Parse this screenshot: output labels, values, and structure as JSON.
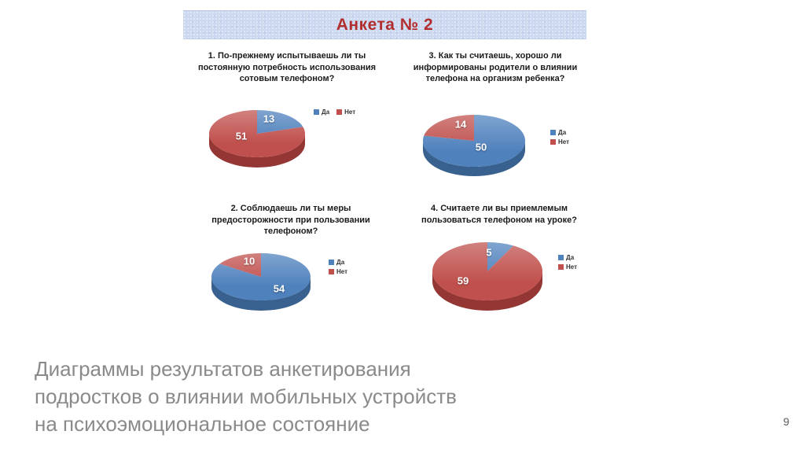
{
  "slide": {
    "title": "Анкета № 2",
    "caption": "Диаграммы результатов анкетирования\nподростков о влиянии мобильных устройств\nна психоэмоциональное состояние",
    "page_number": "9"
  },
  "colors": {
    "yes": "#4f81bd",
    "yes_dark": "#38618f",
    "no": "#c0504d",
    "no_dark": "#943634",
    "title": "#b22e2e",
    "header_band": "#ccd9f0",
    "caption_text": "#8a8a8a"
  },
  "chart_data": [
    {
      "type": "pie",
      "question": "1. По-прежнему испытываешь ли ты постоянную потребность использования сотовым телефоном?",
      "categories": [
        "Да",
        "Нет"
      ],
      "values": [
        13,
        51
      ],
      "data_labels": [
        "13",
        "51"
      ],
      "legend_position": "right",
      "legend_orientation": "horizontal",
      "start_angle_deg": -90,
      "direction": "clockwise"
    },
    {
      "type": "pie",
      "question": "2. Соблюдаешь ли ты меры предосторожности при пользовании телефоном?",
      "categories": [
        "Да",
        "Нет"
      ],
      "values": [
        54,
        10
      ],
      "data_labels": [
        "54",
        "10"
      ],
      "legend_position": "right",
      "legend_orientation": "vertical",
      "start_angle_deg": -90,
      "direction": "clockwise"
    },
    {
      "type": "pie",
      "question": "3. Как ты считаешь, хорошо ли информированы родители о влиянии телефона на организм ребенка?",
      "categories": [
        "Да",
        "Нет"
      ],
      "values": [
        50,
        14
      ],
      "data_labels": [
        "50",
        "14"
      ],
      "legend_position": "right",
      "legend_orientation": "vertical",
      "start_angle_deg": -90,
      "direction": "clockwise"
    },
    {
      "type": "pie",
      "question": "4. Считаете ли вы приемлемым пользоваться телефоном на уроке?",
      "categories": [
        "Да",
        "Нет"
      ],
      "values": [
        5,
        59
      ],
      "data_labels": [
        "5",
        "59"
      ],
      "legend_position": "right",
      "legend_orientation": "vertical",
      "start_angle_deg": -90,
      "direction": "clockwise"
    }
  ]
}
